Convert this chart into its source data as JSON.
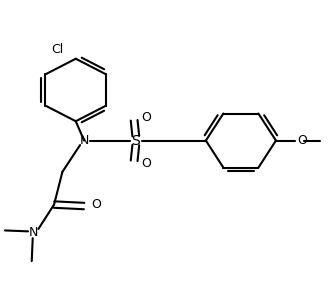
{
  "line_color": "#000000",
  "bg_color": "#ffffff",
  "line_width": 1.5,
  "dbo": 0.012,
  "fig_width": 3.35,
  "fig_height": 2.99,
  "xlim": [
    0,
    1
  ],
  "ylim": [
    0,
    1
  ]
}
